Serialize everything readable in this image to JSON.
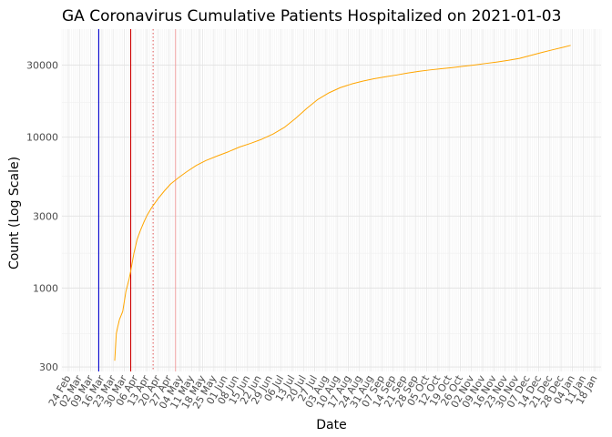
{
  "chart_data": {
    "type": "line",
    "title": "GA Coronavirus Cumulative Patients Hospitalized on 2021-01-03",
    "xlabel": "Date",
    "ylabel": "Count (Log Scale)",
    "y_scale": "log",
    "grid": true,
    "xlim": [
      "2020-02-20",
      "2021-01-22"
    ],
    "ylim": [
      280,
      52000
    ],
    "x_ticks": [
      "24 Feb",
      "02 Mar",
      "09 Mar",
      "16 Mar",
      "23 Mar",
      "30 Mar",
      "06 Apr",
      "13 Apr",
      "20 Apr",
      "27 Apr",
      "04 May",
      "11 May",
      "18 May",
      "25 May",
      "01 Jun",
      "08 Jun",
      "15 Jun",
      "22 Jun",
      "29 Jun",
      "06 Jul",
      "13 Jul",
      "20 Jul",
      "27 Jul",
      "03 Aug",
      "10 Aug",
      "17 Aug",
      "24 Aug",
      "31 Aug",
      "07 Sep",
      "14 Sep",
      "21 Sep",
      "28 Sep",
      "05 Oct",
      "12 Oct",
      "19 Oct",
      "26 Oct",
      "02 Nov",
      "09 Nov",
      "16 Nov",
      "23 Nov",
      "30 Nov",
      "07 Dec",
      "14 Dec",
      "21 Dec",
      "28 Dec",
      "04 Jan",
      "11 Jan",
      "18 Jan"
    ],
    "x_tick_dates": [
      "2020-02-24",
      "2020-03-02",
      "2020-03-09",
      "2020-03-16",
      "2020-03-23",
      "2020-03-30",
      "2020-04-06",
      "2020-04-13",
      "2020-04-20",
      "2020-04-27",
      "2020-05-04",
      "2020-05-11",
      "2020-05-18",
      "2020-05-25",
      "2020-06-01",
      "2020-06-08",
      "2020-06-15",
      "2020-06-22",
      "2020-06-29",
      "2020-07-06",
      "2020-07-13",
      "2020-07-20",
      "2020-07-27",
      "2020-08-03",
      "2020-08-10",
      "2020-08-17",
      "2020-08-24",
      "2020-08-31",
      "2020-09-07",
      "2020-09-14",
      "2020-09-21",
      "2020-09-28",
      "2020-10-05",
      "2020-10-12",
      "2020-10-19",
      "2020-10-26",
      "2020-11-02",
      "2020-11-09",
      "2020-11-16",
      "2020-11-23",
      "2020-11-30",
      "2020-12-07",
      "2020-12-14",
      "2020-12-21",
      "2020-12-28",
      "2021-01-04",
      "2021-01-11",
      "2021-01-18"
    ],
    "y_ticks": [
      300,
      1000,
      3000,
      10000,
      30000
    ],
    "y_tick_labels": [
      "300",
      "1000",
      "3000",
      "10000",
      "30000"
    ],
    "vlines": [
      {
        "x": "2020-03-14",
        "color": "#0000cc",
        "style": "solid"
      },
      {
        "x": "2020-04-03",
        "color": "#cc0000",
        "style": "solid"
      },
      {
        "x": "2020-04-17",
        "color": "#e06060",
        "style": "dotted"
      },
      {
        "x": "2020-05-01",
        "color": "#f0a8a8",
        "style": "solid"
      },
      {
        "x": "2020-05-16",
        "color": "#e4e4e4",
        "style": "solid"
      }
    ],
    "series": [
      {
        "color": "#ffa500",
        "points": [
          [
            "2020-03-24",
            330
          ],
          [
            "2020-03-25",
            500
          ],
          [
            "2020-03-26",
            560
          ],
          [
            "2020-03-27",
            620
          ],
          [
            "2020-03-29",
            700
          ],
          [
            "2020-03-31",
            950
          ],
          [
            "2020-04-02",
            1150
          ],
          [
            "2020-04-03",
            1300
          ],
          [
            "2020-04-05",
            1700
          ],
          [
            "2020-04-07",
            2100
          ],
          [
            "2020-04-09",
            2400
          ],
          [
            "2020-04-11",
            2700
          ],
          [
            "2020-04-13",
            3000
          ],
          [
            "2020-04-16",
            3400
          ],
          [
            "2020-04-20",
            3900
          ],
          [
            "2020-04-24",
            4400
          ],
          [
            "2020-04-28",
            4900
          ],
          [
            "2020-05-03",
            5400
          ],
          [
            "2020-05-08",
            5900
          ],
          [
            "2020-05-14",
            6500
          ],
          [
            "2020-05-20",
            7000
          ],
          [
            "2020-05-27",
            7500
          ],
          [
            "2020-06-03",
            8000
          ],
          [
            "2020-06-10",
            8600
          ],
          [
            "2020-06-17",
            9100
          ],
          [
            "2020-06-24",
            9700
          ],
          [
            "2020-07-01",
            10500
          ],
          [
            "2020-07-08",
            11600
          ],
          [
            "2020-07-15",
            13300
          ],
          [
            "2020-07-22",
            15500
          ],
          [
            "2020-07-29",
            17800
          ],
          [
            "2020-08-05",
            19700
          ],
          [
            "2020-08-12",
            21300
          ],
          [
            "2020-08-19",
            22500
          ],
          [
            "2020-08-26",
            23500
          ],
          [
            "2020-09-02",
            24400
          ],
          [
            "2020-09-09",
            25100
          ],
          [
            "2020-09-16",
            25800
          ],
          [
            "2020-09-23",
            26600
          ],
          [
            "2020-09-30",
            27300
          ],
          [
            "2020-10-07",
            27900
          ],
          [
            "2020-10-14",
            28400
          ],
          [
            "2020-10-21",
            28900
          ],
          [
            "2020-10-28",
            29500
          ],
          [
            "2020-11-04",
            30100
          ],
          [
            "2020-11-11",
            30800
          ],
          [
            "2020-11-18",
            31500
          ],
          [
            "2020-11-25",
            32300
          ],
          [
            "2020-12-02",
            33300
          ],
          [
            "2020-12-09",
            34800
          ],
          [
            "2020-12-16",
            36400
          ],
          [
            "2020-12-23",
            38000
          ],
          [
            "2020-12-30",
            39600
          ],
          [
            "2021-01-03",
            40600
          ]
        ]
      }
    ]
  }
}
